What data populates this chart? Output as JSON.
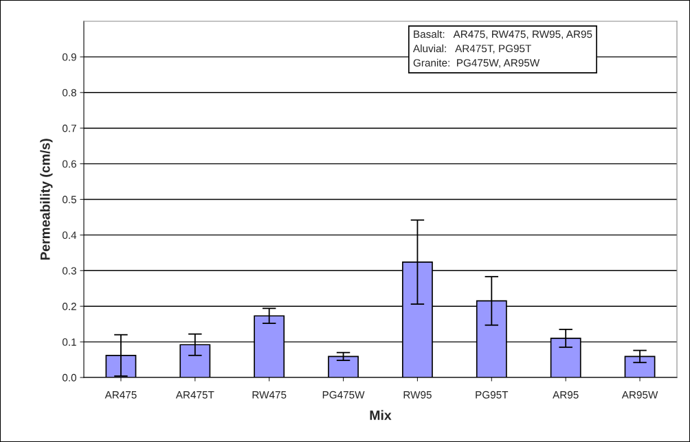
{
  "chart_data": {
    "type": "bar",
    "xlabel": "Mix",
    "ylabel": "Permeability (cm/s)",
    "categories": [
      "AR475",
      "AR475T",
      "RW475",
      "PG475W",
      "RW95",
      "PG95T",
      "AR95",
      "AR95W"
    ],
    "values": [
      0.062,
      0.092,
      0.173,
      0.059,
      0.324,
      0.215,
      0.11,
      0.059
    ],
    "errors": [
      0.058,
      0.03,
      0.021,
      0.011,
      0.118,
      0.068,
      0.025,
      0.017
    ],
    "color": "#9999ff",
    "ylim": [
      0,
      1.0
    ],
    "yticks": [
      {
        "value": 0,
        "label": "0.0"
      },
      0.1,
      0.2,
      0.3,
      0.4,
      0.5,
      0.6,
      0.7,
      0.8,
      0.9
    ],
    "grid": "y",
    "legend": false,
    "annotations": [
      "Basalt:   AR475, RW475, RW95, AR95\nAluvial:   AR475T, PG95T\nGranite:  PG475W, AR95W"
    ]
  }
}
